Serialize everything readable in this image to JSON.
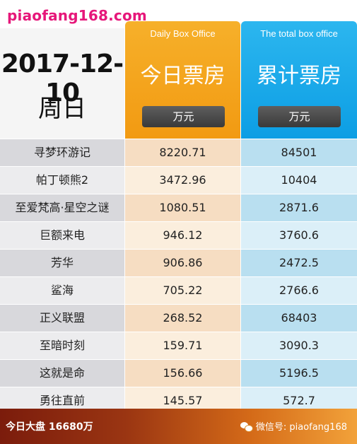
{
  "brand": "piaofang168.com",
  "date": "2017-12-10",
  "weekday": "周日",
  "columns": {
    "today": {
      "en": "Daily Box Office",
      "cn": "今日票房",
      "unit": "万元"
    },
    "total": {
      "en": "The total box office",
      "cn": "累计票房",
      "unit": "万元"
    }
  },
  "rows": [
    {
      "name": "寻梦环游记",
      "today": "8220.71",
      "total": "84501"
    },
    {
      "name": "帕丁顿熊2",
      "today": "3472.96",
      "total": "10404"
    },
    {
      "name": "至爱梵高·星空之谜",
      "today": "1080.51",
      "total": "2871.6"
    },
    {
      "name": "巨额来电",
      "today": "946.12",
      "total": "3760.6"
    },
    {
      "name": "芳华",
      "today": "906.86",
      "total": "2472.5"
    },
    {
      "name": "鲨海",
      "today": "705.22",
      "total": "2766.6"
    },
    {
      "name": "正义联盟",
      "today": "268.52",
      "total": "68403"
    },
    {
      "name": "至暗时刻",
      "today": "159.71",
      "total": "3090.3"
    },
    {
      "name": "这就是命",
      "today": "156.66",
      "total": "5196.5"
    },
    {
      "name": "勇往直前",
      "today": "145.57",
      "total": "572.7"
    }
  ],
  "footer": {
    "summary": "今日大盘 16680万",
    "wechat": "微信号: piaofang168",
    "wechat_icon": "wechat-icon"
  }
}
